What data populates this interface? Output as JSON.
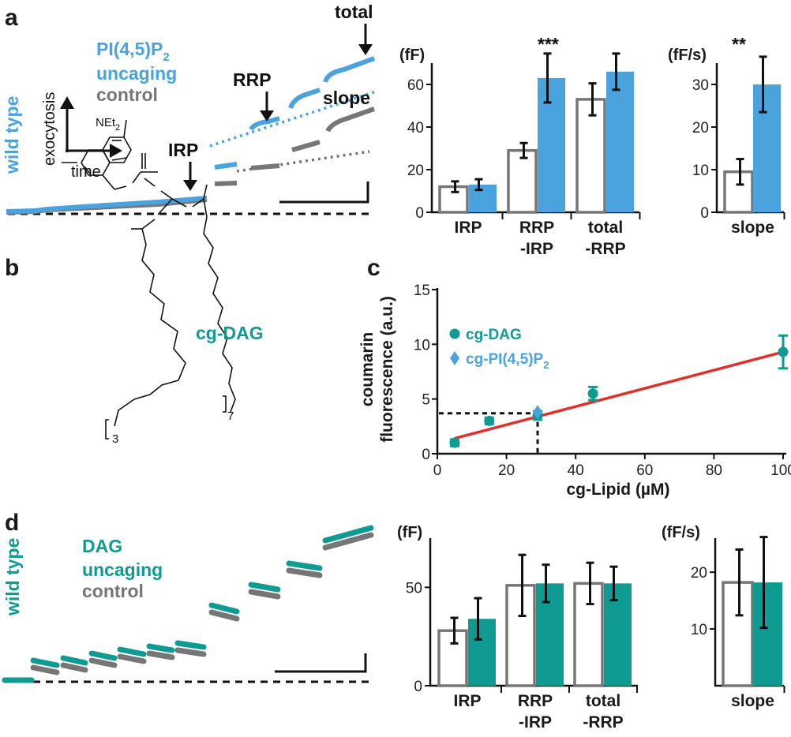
{
  "panels": {
    "a": "a",
    "b": "b",
    "c": "c",
    "d": "d"
  },
  "colors": {
    "blue": "#4aa3dc",
    "teal": "#0f9b91",
    "gray": "#767676",
    "red": "#e0302a",
    "black": "#111111"
  },
  "panel_a": {
    "side_label": "wild type",
    "legend": {
      "line1": "PI(4,5)P",
      "sub": "2",
      "line2": "uncaging",
      "control": "control"
    },
    "axes": {
      "y": "exocytosis",
      "x": "time"
    },
    "annotations": {
      "total": "total",
      "rrp": "RRP",
      "irp": "IRP",
      "slope": "slope"
    },
    "bar_unit": "(fF)",
    "slope_unit": "(fF/s)",
    "significance": {
      "bars": "***",
      "slope": "**"
    }
  },
  "panel_b": {
    "label": "cg-DAG",
    "nEt": "NEt",
    "nEt_sub": "2",
    "sub3": "3",
    "sub7": "7"
  },
  "panel_d": {
    "side_label": "wild type",
    "legend": {
      "line1": "DAG",
      "line2": "uncaging",
      "control": "control"
    },
    "bar_unit": "(fF)",
    "slope_unit": "(fF/s)"
  },
  "chart_data": [
    {
      "id": "a-bars",
      "type": "bar",
      "categories": [
        "IRP",
        "RRP\n-IRP",
        "total\n-RRP"
      ],
      "series": [
        {
          "name": "control",
          "values": [
            12,
            29,
            53
          ],
          "errors": [
            2.5,
            3.5,
            7.5
          ]
        },
        {
          "name": "PI(4,5)P2 uncaging",
          "values": [
            13,
            63,
            66
          ],
          "errors": [
            2.5,
            11.5,
            8.5
          ]
        }
      ],
      "ylabel": "(fF)",
      "ylim": [
        0,
        70
      ],
      "yticks": [
        0,
        20,
        40,
        60
      ],
      "annotation": "***"
    },
    {
      "id": "a-slope",
      "type": "bar",
      "categories": [
        "slope"
      ],
      "series": [
        {
          "name": "control",
          "values": [
            9.5
          ],
          "errors": [
            3
          ]
        },
        {
          "name": "PI(4,5)P2 uncaging",
          "values": [
            30
          ],
          "errors": [
            6.5
          ]
        }
      ],
      "ylabel": "(fF/s)",
      "ylim": [
        0,
        35
      ],
      "yticks": [
        0,
        10,
        20,
        30
      ],
      "annotation": "**"
    },
    {
      "id": "c-scatter",
      "type": "scatter",
      "xlabel": "cg-Lipid (µM)",
      "ylabel_line1": "coumarin",
      "ylabel_line2": "fluorescence (a.u.)",
      "xlim": [
        0,
        100
      ],
      "ylim": [
        0,
        15
      ],
      "xticks": [
        0,
        20,
        40,
        60,
        80,
        100
      ],
      "yticks": [
        0,
        5,
        10,
        15
      ],
      "series": [
        {
          "name": "cg-DAG",
          "x": [
            5,
            15,
            29,
            45,
            100
          ],
          "y": [
            1.0,
            3.0,
            3.5,
            5.5,
            9.3
          ],
          "errors": [
            0.3,
            0.3,
            0.4,
            0.6,
            1.5
          ]
        },
        {
          "name": "cg-PI(4,5)P",
          "name_sub": "2",
          "x": [
            29
          ],
          "y": [
            3.8
          ],
          "errors": [
            0.4
          ]
        }
      ],
      "fit": {
        "x": [
          5,
          100
        ],
        "y": [
          1.4,
          9.3
        ]
      },
      "reference": {
        "x": 29,
        "y": 3.7
      }
    },
    {
      "id": "d-bars",
      "type": "bar",
      "categories": [
        "IRP",
        "RRP\n-IRP",
        "total\n-RRP"
      ],
      "series": [
        {
          "name": "control",
          "values": [
            28,
            51,
            52
          ],
          "errors": [
            6.5,
            15.5,
            10.5
          ]
        },
        {
          "name": "DAG uncaging",
          "values": [
            34,
            52,
            52
          ],
          "errors": [
            10.5,
            9.5,
            8.5
          ]
        }
      ],
      "ylabel": "(fF)",
      "ylim": [
        0,
        75
      ],
      "yticks": [
        0,
        50
      ]
    },
    {
      "id": "d-slope",
      "type": "bar",
      "categories": [
        "slope"
      ],
      "series": [
        {
          "name": "control",
          "values": [
            18.2
          ],
          "errors": [
            5.8
          ]
        },
        {
          "name": "DAG uncaging",
          "values": [
            18.2
          ],
          "errors": [
            8
          ]
        }
      ],
      "ylabel": "(fF/s)",
      "ylim": [
        0,
        26
      ],
      "yticks": [
        10,
        20
      ]
    }
  ]
}
